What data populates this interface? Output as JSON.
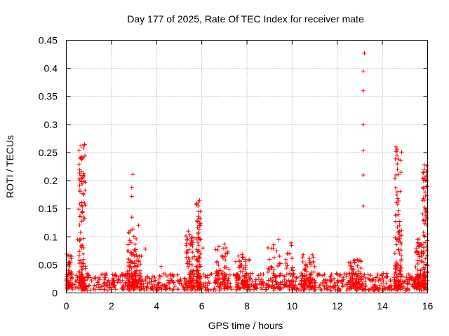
{
  "chart_data": {
    "type": "scatter",
    "title": "Day 177 of 2025, Rate Of TEC Index for receiver mate",
    "xlabel": "GPS time / hours",
    "ylabel": "ROTI / TECUs",
    "xlim": [
      0,
      16
    ],
    "ylim": [
      0,
      0.45
    ],
    "x_ticks": [
      0,
      2,
      4,
      6,
      8,
      10,
      12,
      14,
      16
    ],
    "x_tick_labels": [
      "0",
      "2",
      "4",
      "6",
      "8",
      "10",
      "12",
      "14",
      "16"
    ],
    "y_ticks": [
      0,
      0.05,
      0.1,
      0.15,
      0.2,
      0.25,
      0.3,
      0.35,
      0.4,
      0.45
    ],
    "y_tick_labels": [
      "0",
      "0.05",
      "0.1",
      "0.15",
      "0.2",
      "0.25",
      "0.3",
      "0.35",
      "0.4",
      "0.45"
    ],
    "grid": true,
    "marker": "+",
    "color": "#ff0000",
    "baseline": {
      "description": "dense background of points across the whole day",
      "x_range": [
        0,
        16
      ],
      "y_range": [
        0.005,
        0.035
      ]
    },
    "clusters": [
      {
        "x_center": 0.1,
        "x_spread": 0.15,
        "y_max": 0.07
      },
      {
        "x_center": 0.7,
        "x_spread": 0.15,
        "y_max": 0.265
      },
      {
        "x_center": 2.9,
        "x_spread": 0.2,
        "y_max": 0.12
      },
      {
        "x_center": 3.1,
        "x_spread": 0.25,
        "y_max": 0.07
      },
      {
        "x_center": 5.5,
        "x_spread": 0.2,
        "y_max": 0.11
      },
      {
        "x_center": 5.85,
        "x_spread": 0.1,
        "y_max": 0.165
      },
      {
        "x_center": 6.9,
        "x_spread": 0.3,
        "y_max": 0.085
      },
      {
        "x_center": 7.8,
        "x_spread": 0.3,
        "y_max": 0.07
      },
      {
        "x_center": 9.5,
        "x_spread": 0.6,
        "y_max": 0.095
      },
      {
        "x_center": 10.7,
        "x_spread": 0.3,
        "y_max": 0.07
      },
      {
        "x_center": 12.8,
        "x_spread": 0.3,
        "y_max": 0.06
      },
      {
        "x_center": 14.7,
        "x_spread": 0.15,
        "y_max": 0.26
      },
      {
        "x_center": 15.6,
        "x_spread": 0.15,
        "y_max": 0.1
      },
      {
        "x_center": 15.9,
        "x_spread": 0.12,
        "y_max": 0.23
      }
    ],
    "outliers": [
      {
        "x": 13.15,
        "y": 0.155
      },
      {
        "x": 13.15,
        "y": 0.21
      },
      {
        "x": 13.15,
        "y": 0.253
      },
      {
        "x": 13.15,
        "y": 0.3
      },
      {
        "x": 13.15,
        "y": 0.36
      },
      {
        "x": 13.15,
        "y": 0.395
      },
      {
        "x": 13.2,
        "y": 0.427
      },
      {
        "x": 2.9,
        "y": 0.172
      },
      {
        "x": 2.9,
        "y": 0.188
      },
      {
        "x": 2.95,
        "y": 0.211
      },
      {
        "x": 2.9,
        "y": 0.135
      },
      {
        "x": 0.65,
        "y": 0.262
      },
      {
        "x": 0.75,
        "y": 0.258
      },
      {
        "x": 0.7,
        "y": 0.24
      },
      {
        "x": 0.6,
        "y": 0.2
      },
      {
        "x": 0.8,
        "y": 0.16
      },
      {
        "x": 0.75,
        "y": 0.13
      },
      {
        "x": 5.9,
        "y": 0.165
      },
      {
        "x": 5.85,
        "y": 0.145
      },
      {
        "x": 14.6,
        "y": 0.26
      },
      {
        "x": 14.65,
        "y": 0.245
      },
      {
        "x": 14.6,
        "y": 0.21
      },
      {
        "x": 14.65,
        "y": 0.18
      },
      {
        "x": 14.7,
        "y": 0.14
      },
      {
        "x": 14.75,
        "y": 0.12
      },
      {
        "x": 15.85,
        "y": 0.228
      },
      {
        "x": 15.9,
        "y": 0.2
      },
      {
        "x": 15.85,
        "y": 0.165
      },
      {
        "x": 15.95,
        "y": 0.15
      },
      {
        "x": 15.8,
        "y": 0.13
      },
      {
        "x": 15.55,
        "y": 0.095
      },
      {
        "x": 3.2,
        "y": 0.12
      },
      {
        "x": 3.5,
        "y": 0.078
      },
      {
        "x": 4.2,
        "y": 0.047
      },
      {
        "x": 7.0,
        "y": 0.087
      },
      {
        "x": 6.05,
        "y": 0.08
      },
      {
        "x": 5.4,
        "y": 0.11
      },
      {
        "x": 5.6,
        "y": 0.09
      },
      {
        "x": 9.4,
        "y": 0.095
      },
      {
        "x": 0.5,
        "y": 0.095
      }
    ]
  }
}
